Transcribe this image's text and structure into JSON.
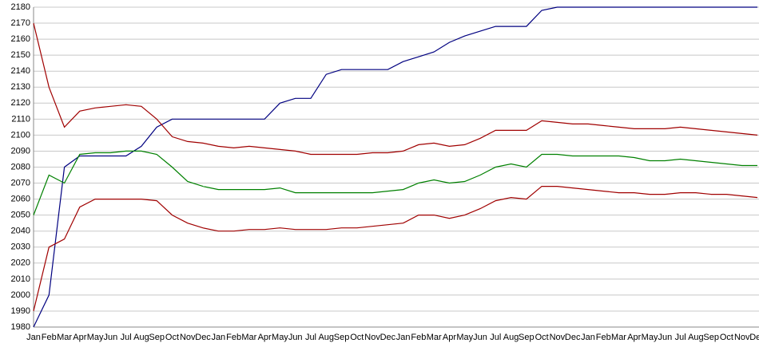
{
  "chart_data": {
    "type": "line",
    "categories": [
      "Jan",
      "Feb",
      "Mar",
      "Apr",
      "May",
      "Jun",
      "Jul",
      "Aug",
      "Sep",
      "Oct",
      "Nov",
      "Dec",
      "Jan",
      "Feb",
      "Mar",
      "Apr",
      "May",
      "Jun",
      "Jul",
      "Aug",
      "Sep",
      "Oct",
      "Nov",
      "Dec",
      "Jan",
      "Feb",
      "Mar",
      "Apr",
      "May",
      "Jun",
      "Jul",
      "Aug",
      "Sep",
      "Oct",
      "Nov",
      "Dec",
      "Jan",
      "Feb",
      "Mar",
      "Apr",
      "May",
      "Jun",
      "Jul",
      "Aug",
      "Sep",
      "Oct",
      "Nov",
      "Dec"
    ],
    "series": [
      {
        "color": "#000080",
        "values": [
          1980,
          2000,
          2080,
          2087,
          2087,
          2087,
          2087,
          2093,
          2105,
          2110,
          2110,
          2110,
          2110,
          2110,
          2110,
          2110,
          2120,
          2123,
          2123,
          2138,
          2141,
          2141,
          2141,
          2141,
          2146,
          2149,
          2152,
          2158,
          2162,
          2165,
          2168,
          2168,
          2168,
          2178,
          2180,
          2180,
          2180,
          2180,
          2180,
          2180,
          2180,
          2180,
          2180,
          2180,
          2180,
          2180,
          2180,
          2180
        ]
      },
      {
        "color": "#a00000",
        "values": [
          2170,
          2130,
          2105,
          2115,
          2117,
          2118,
          2119,
          2118,
          2110,
          2099,
          2096,
          2095,
          2093,
          2092,
          2093,
          2092,
          2091,
          2090,
          2088,
          2088,
          2088,
          2088,
          2089,
          2089,
          2090,
          2094,
          2095,
          2093,
          2094,
          2098,
          2103,
          2103,
          2103,
          2109,
          2108,
          2107,
          2107,
          2106,
          2105,
          2104,
          2104,
          2104,
          2105,
          2104,
          2103,
          2102,
          2101,
          2100
        ]
      },
      {
        "color": "#008000",
        "values": [
          2050,
          2075,
          2070,
          2088,
          2089,
          2089,
          2090,
          2090,
          2088,
          2080,
          2071,
          2068,
          2066,
          2066,
          2066,
          2066,
          2067,
          2064,
          2064,
          2064,
          2064,
          2064,
          2064,
          2065,
          2066,
          2070,
          2072,
          2070,
          2071,
          2075,
          2080,
          2082,
          2080,
          2088,
          2088,
          2087,
          2087,
          2087,
          2087,
          2086,
          2084,
          2084,
          2085,
          2084,
          2083,
          2082,
          2081,
          2081
        ]
      },
      {
        "color": "#a00000",
        "values": [
          1990,
          2030,
          2035,
          2055,
          2060,
          2060,
          2060,
          2060,
          2059,
          2050,
          2045,
          2042,
          2040,
          2040,
          2041,
          2041,
          2042,
          2041,
          2041,
          2041,
          2042,
          2042,
          2043,
          2044,
          2045,
          2050,
          2050,
          2048,
          2050,
          2054,
          2059,
          2061,
          2060,
          2068,
          2068,
          2067,
          2066,
          2065,
          2064,
          2064,
          2063,
          2063,
          2064,
          2064,
          2063,
          2063,
          2062,
          2061
        ]
      }
    ],
    "ylim": [
      1980,
      2180
    ],
    "yticks": [
      1980,
      1990,
      2000,
      2010,
      2020,
      2030,
      2040,
      2050,
      2060,
      2070,
      2080,
      2090,
      2100,
      2110,
      2120,
      2130,
      2140,
      2150,
      2160,
      2170,
      2180
    ],
    "grid": true
  }
}
